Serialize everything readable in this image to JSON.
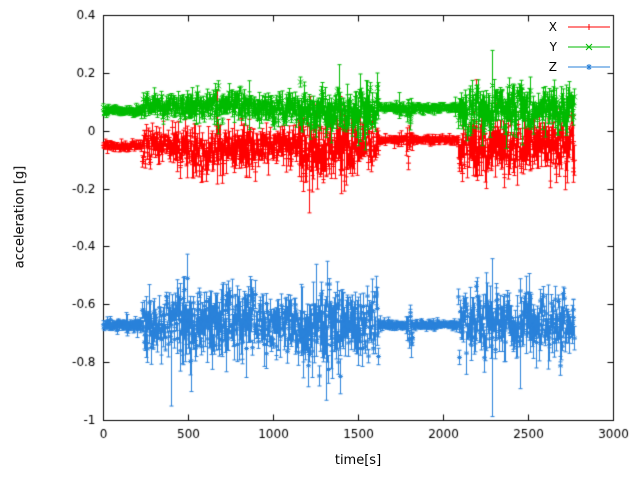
{
  "figure": {
    "background": "#ffffff"
  },
  "chart_data": {
    "type": "scatter",
    "title": "",
    "xlabel": "time[s]",
    "ylabel": "acceleration [g]",
    "xlim": [
      0,
      3000
    ],
    "ylim": [
      -1,
      0.4
    ],
    "grid": false,
    "legend_position": "top-right",
    "axis_color": "#000000",
    "errorbar_style": "yerrorbars",
    "sample_dt": 3,
    "xticks": [
      {
        "v": 0,
        "label": "0"
      },
      {
        "v": 500,
        "label": "500"
      },
      {
        "v": 1000,
        "label": "1000"
      },
      {
        "v": 1500,
        "label": "1500"
      },
      {
        "v": 2000,
        "label": "2000"
      },
      {
        "v": 2500,
        "label": "2500"
      },
      {
        "v": 3000,
        "label": "3000"
      }
    ],
    "yticks": [
      {
        "v": -1,
        "label": "-1"
      },
      {
        "v": -0.8,
        "label": "-0.8"
      },
      {
        "v": -0.6,
        "label": "-0.6"
      },
      {
        "v": -0.4,
        "label": "-0.4"
      },
      {
        "v": -0.2,
        "label": "-0.2"
      },
      {
        "v": 0,
        "label": "0"
      },
      {
        "v": 0.2,
        "label": "0.2"
      },
      {
        "v": 0.4,
        "label": "0.4"
      }
    ],
    "series": [
      {
        "name": "X",
        "color": "#ff0000",
        "marker": "plus",
        "seed": 101,
        "segments": [
          {
            "t0": 0,
            "t1": 230,
            "mean": -0.05,
            "noise": 0.006
          },
          {
            "t0": 230,
            "t1": 420,
            "mean": -0.04,
            "noise": 0.025
          },
          {
            "t0": 420,
            "t1": 900,
            "mean": -0.06,
            "noise": 0.035
          },
          {
            "t0": 900,
            "t1": 1150,
            "mean": -0.05,
            "noise": 0.03
          },
          {
            "t0": 1150,
            "t1": 1450,
            "mean": -0.07,
            "noise": 0.05
          },
          {
            "t0": 1450,
            "t1": 1620,
            "mean": -0.04,
            "noise": 0.035
          },
          {
            "t0": 1620,
            "t1": 1780,
            "mean": -0.03,
            "noise": 0.005
          },
          {
            "t0": 1780,
            "t1": 1820,
            "mean": -0.04,
            "noise": 0.02
          },
          {
            "t0": 1820,
            "t1": 2090,
            "mean": -0.03,
            "noise": 0.005
          },
          {
            "t0": 2090,
            "t1": 2300,
            "mean": -0.06,
            "noise": 0.04
          },
          {
            "t0": 2300,
            "t1": 2770,
            "mean": -0.05,
            "noise": 0.04
          }
        ],
        "spikes": [
          {
            "t": 700,
            "v": -0.18
          },
          {
            "t": 840,
            "v": -0.16
          },
          {
            "t": 1230,
            "v": -0.21
          },
          {
            "t": 1260,
            "v": -0.2
          },
          {
            "t": 1395,
            "v": 0.12
          },
          {
            "t": 2200,
            "v": -0.17
          }
        ]
      },
      {
        "name": "Y",
        "color": "#00bb00",
        "marker": "cross",
        "seed": 202,
        "segments": [
          {
            "t0": 0,
            "t1": 230,
            "mean": 0.07,
            "noise": 0.006
          },
          {
            "t0": 230,
            "t1": 420,
            "mean": 0.09,
            "noise": 0.015
          },
          {
            "t0": 420,
            "t1": 900,
            "mean": 0.09,
            "noise": 0.02
          },
          {
            "t0": 900,
            "t1": 1150,
            "mean": 0.08,
            "noise": 0.02
          },
          {
            "t0": 1150,
            "t1": 1450,
            "mean": 0.07,
            "noise": 0.03
          },
          {
            "t0": 1450,
            "t1": 1620,
            "mean": 0.06,
            "noise": 0.03
          },
          {
            "t0": 1620,
            "t1": 1780,
            "mean": 0.08,
            "noise": 0.006
          },
          {
            "t0": 1780,
            "t1": 1820,
            "mean": 0.07,
            "noise": 0.015
          },
          {
            "t0": 1820,
            "t1": 2090,
            "mean": 0.08,
            "noise": 0.006
          },
          {
            "t0": 2090,
            "t1": 2300,
            "mean": 0.07,
            "noise": 0.035
          },
          {
            "t0": 2300,
            "t1": 2770,
            "mean": 0.08,
            "noise": 0.03
          }
        ],
        "spikes": [
          {
            "t": 300,
            "v": 0.15
          },
          {
            "t": 1180,
            "v": 0.17
          },
          {
            "t": 1340,
            "v": -0.04
          },
          {
            "t": 1390,
            "v": 0.23
          },
          {
            "t": 1500,
            "v": -0.05
          },
          {
            "t": 2230,
            "v": -0.05
          },
          {
            "t": 2370,
            "v": -0.06
          },
          {
            "t": 2600,
            "v": -0.02
          }
        ]
      },
      {
        "name": "Z",
        "color": "#2a82da",
        "marker": "asterisk",
        "seed": 303,
        "segments": [
          {
            "t0": 0,
            "t1": 230,
            "mean": -0.67,
            "noise": 0.008
          },
          {
            "t0": 230,
            "t1": 420,
            "mean": -0.67,
            "noise": 0.04
          },
          {
            "t0": 420,
            "t1": 900,
            "mean": -0.66,
            "noise": 0.05
          },
          {
            "t0": 900,
            "t1": 1150,
            "mean": -0.67,
            "noise": 0.04
          },
          {
            "t0": 1150,
            "t1": 1450,
            "mean": -0.68,
            "noise": 0.06
          },
          {
            "t0": 1450,
            "t1": 1620,
            "mean": -0.67,
            "noise": 0.05
          },
          {
            "t0": 1620,
            "t1": 1780,
            "mean": -0.67,
            "noise": 0.006
          },
          {
            "t0": 1780,
            "t1": 1820,
            "mean": -0.68,
            "noise": 0.03
          },
          {
            "t0": 1820,
            "t1": 2090,
            "mean": -0.67,
            "noise": 0.006
          },
          {
            "t0": 2090,
            "t1": 2300,
            "mean": -0.66,
            "noise": 0.045
          },
          {
            "t0": 2300,
            "t1": 2770,
            "mean": -0.67,
            "noise": 0.045
          }
        ],
        "spikes": [
          {
            "t": 400,
            "v": -0.95
          },
          {
            "t": 520,
            "v": -0.9
          },
          {
            "t": 1250,
            "v": -0.46
          },
          {
            "t": 1310,
            "v": -0.93
          },
          {
            "t": 2450,
            "v": -0.89
          }
        ]
      }
    ]
  }
}
